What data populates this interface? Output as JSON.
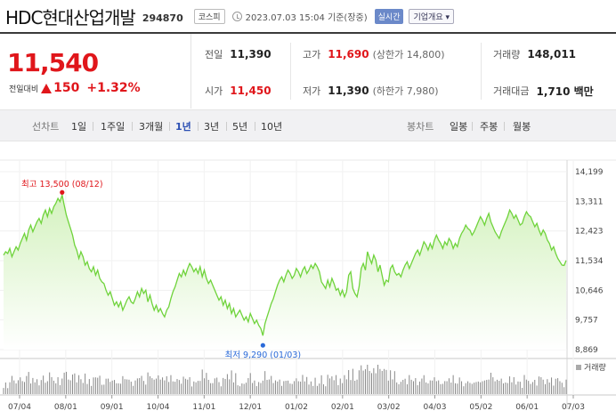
{
  "header": {
    "stock_name": "HDC현대산업개발",
    "stock_code": "294870",
    "market": "코스피",
    "timestamp": "2023.07.03 15:04 기준(장중)",
    "live_label": "실시간",
    "corp_info_label": "기업개요 ▾"
  },
  "price": {
    "current": "11,540",
    "change_label": "전일대비",
    "change": "150",
    "change_rate": "+1.32%"
  },
  "stats": {
    "prev_close": {
      "label": "전일",
      "value": "11,390"
    },
    "open": {
      "label": "시가",
      "value": "11,450"
    },
    "high": {
      "label": "고가",
      "value": "11,690",
      "sub": "(상한가 14,800)"
    },
    "low": {
      "label": "저가",
      "value": "11,390",
      "sub": "(하한가 7,980)"
    },
    "volume": {
      "label": "거래량",
      "value": "148,011"
    },
    "amount": {
      "label": "거래대금",
      "value": "1,710 백만"
    }
  },
  "periods": {
    "line_label": "선차트",
    "line_tabs": [
      "1일",
      "1주일",
      "3개월",
      "1년",
      "3년",
      "5년",
      "10년"
    ],
    "active_tab": "1년",
    "candle_label": "봉차트",
    "candle_tabs": [
      "일봉",
      "주봉",
      "월봉"
    ]
  },
  "colors": {
    "up": "#e0161b",
    "line": "#6fd33b",
    "fill_top": "#d8f4c5",
    "volume": "#888888"
  },
  "chart_data": {
    "type": "area",
    "x_ticks": [
      "07/04",
      "08/01",
      "09/01",
      "10/04",
      "11/01",
      "12/01",
      "01/02",
      "02/01",
      "03/02",
      "04/03",
      "05/02",
      "06/01",
      "07/03"
    ],
    "y_ticks": [
      "14,199",
      "13,311",
      "12,423",
      "11,534",
      "10,646",
      "9,757",
      "8,869"
    ],
    "ylim": [
      8869,
      14199
    ],
    "max_label": "최고 13,500 (08/12)",
    "min_label": "최저 9,290 (01/03)",
    "volume_label": "거래량",
    "max_point": {
      "index": 28,
      "value": 13500
    },
    "min_point": {
      "index": 124,
      "value": 9290
    },
    "values": [
      11700,
      11800,
      11750,
      11900,
      11650,
      11800,
      11950,
      11850,
      12050,
      12200,
      12350,
      12150,
      12450,
      12600,
      12400,
      12550,
      12700,
      12800,
      12650,
      12900,
      13050,
      12850,
      13100,
      12950,
      13150,
      13250,
      13400,
      13300,
      13500,
      13200,
      12900,
      12700,
      12500,
      12300,
      12000,
      11850,
      11600,
      11800,
      11650,
      11400,
      11500,
      11300,
      11200,
      11350,
      11100,
      11250,
      11000,
      10900,
      10850,
      10650,
      10500,
      10600,
      10400,
      10200,
      10300,
      10150,
      10300,
      10050,
      10200,
      10350,
      10450,
      10300,
      10250,
      10400,
      10600,
      10450,
      10700,
      10550,
      10650,
      10300,
      10500,
      10250,
      10050,
      10200,
      10000,
      10100,
      9950,
      9850,
      10050,
      10150,
      10400,
      10600,
      10750,
      10950,
      11150,
      11050,
      11250,
      11100,
      11300,
      11450,
      11350,
      11200,
      11300,
      11150,
      11350,
      11050,
      11250,
      11000,
      10850,
      10950,
      10800,
      10650,
      10500,
      10350,
      10450,
      10200,
      10350,
      10100,
      10250,
      9950,
      10100,
      9850,
      9950,
      10050,
      9900,
      9750,
      9850,
      9700,
      9950,
      9800,
      9650,
      9750,
      9600,
      9500,
      9290,
      9650,
      9850,
      10050,
      10250,
      10400,
      10600,
      10800,
      10950,
      11050,
      10900,
      11100,
      11250,
      11150,
      11000,
      11100,
      11300,
      11200,
      11050,
      11250,
      11350,
      11150,
      11250,
      11400,
      11300,
      11450,
      11350,
      11200,
      10900,
      10800,
      10700,
      10950,
      10750,
      11000,
      10850,
      10650,
      10700,
      10500,
      10650,
      10450,
      10600,
      11100,
      11200,
      10700,
      10550,
      10450,
      10750,
      11300,
      11450,
      11250,
      11800,
      11600,
      11450,
      11700,
      11550,
      11200,
      11400,
      11100,
      10800,
      10950,
      10900,
      11300,
      11400,
      11200,
      11100,
      11150,
      11050,
      11250,
      11400,
      11500,
      11300,
      11450,
      11600,
      11750,
      11850,
      11700,
      11900,
      12100,
      12000,
      11850,
      12050,
      11900,
      12150,
      12300,
      12150,
      12050,
      11900,
      12100,
      12000,
      12200,
      12100,
      11900,
      12050,
      11950,
      12200,
      12350,
      12450,
      12600,
      12500,
      12450,
      12300,
      12400,
      12550,
      12700,
      12850,
      12750,
      12600,
      12800,
      12950,
      12700,
      12550,
      12400,
      12300,
      12200,
      12400,
      12550,
      12700,
      12850,
      13050,
      12950,
      12800,
      12900,
      12750,
      12600,
      12650,
      12850,
      13000,
      12900,
      12850,
      12700,
      12550,
      12650,
      12450,
      12300,
      12450,
      12350,
      12150,
      12050,
      11850,
      11950,
      11750,
      11600,
      11500,
      11400,
      11390,
      11540
    ]
  }
}
